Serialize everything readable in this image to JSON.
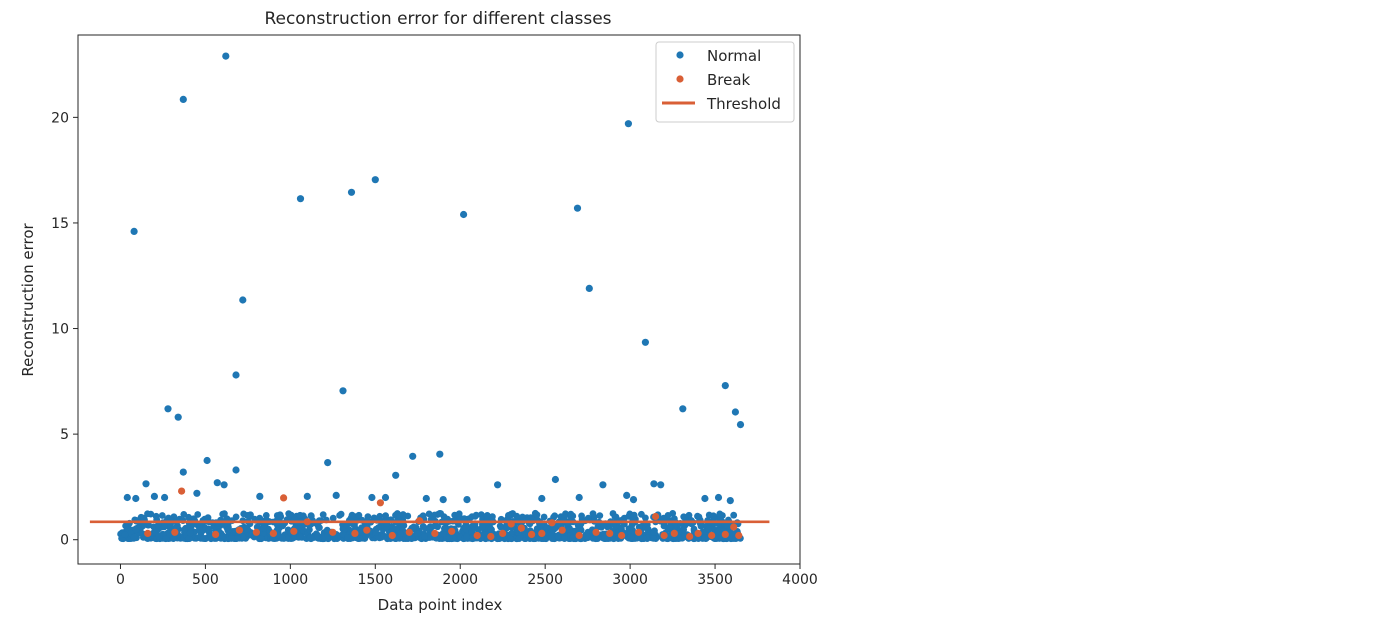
{
  "chart_data": {
    "type": "scatter",
    "title": "Reconstruction error for different classes",
    "xlabel": "Data point index",
    "ylabel": "Reconstruction error",
    "xlim": [
      -250,
      4000
    ],
    "ylim": [
      -1.15,
      23.9
    ],
    "xticks": [
      0,
      500,
      1000,
      1500,
      2000,
      2500,
      3000,
      3500,
      4000
    ],
    "yticks": [
      0,
      5,
      10,
      15,
      20
    ],
    "grid": false,
    "legend_position": "top-right",
    "colors": {
      "normal": "#1f77b4",
      "break": "#d95f36",
      "threshold": "#d95f36",
      "axes": "#262626"
    },
    "series": [
      {
        "name": "Normal",
        "kind": "points",
        "outliers": [
          [
            620,
            22.9
          ],
          [
            370,
            20.85
          ],
          [
            2990,
            19.7
          ],
          [
            1500,
            17.05
          ],
          [
            1360,
            16.45
          ],
          [
            1060,
            16.15
          ],
          [
            2020,
            15.4
          ],
          [
            2690,
            15.7
          ],
          [
            80,
            14.6
          ],
          [
            2760,
            11.9
          ],
          [
            720,
            11.35
          ],
          [
            3090,
            9.35
          ],
          [
            680,
            7.8
          ],
          [
            3560,
            7.3
          ],
          [
            1310,
            7.05
          ],
          [
            280,
            6.2
          ],
          [
            340,
            5.8
          ],
          [
            3310,
            6.2
          ],
          [
            3620,
            6.05
          ],
          [
            3650,
            5.45
          ],
          [
            1880,
            4.05
          ],
          [
            1720,
            3.95
          ],
          [
            510,
            3.75
          ],
          [
            1220,
            3.65
          ],
          [
            680,
            3.3
          ],
          [
            370,
            3.2
          ],
          [
            1620,
            3.05
          ],
          [
            2560,
            2.85
          ],
          [
            150,
            2.65
          ],
          [
            2220,
            2.6
          ],
          [
            2840,
            2.6
          ],
          [
            3140,
            2.65
          ],
          [
            3180,
            2.6
          ],
          [
            570,
            2.7
          ],
          [
            610,
            2.6
          ],
          [
            40,
            2.0
          ],
          [
            90,
            1.95
          ],
          [
            200,
            2.05
          ],
          [
            260,
            2.0
          ],
          [
            450,
            2.2
          ],
          [
            820,
            2.05
          ],
          [
            1100,
            2.05
          ],
          [
            1270,
            2.1
          ],
          [
            1480,
            2.0
          ],
          [
            1560,
            2.0
          ],
          [
            1800,
            1.95
          ],
          [
            1900,
            1.9
          ],
          [
            2040,
            1.9
          ],
          [
            2480,
            1.95
          ],
          [
            2700,
            2.0
          ],
          [
            2980,
            2.1
          ],
          [
            3020,
            1.9
          ],
          [
            3440,
            1.95
          ],
          [
            3520,
            2.0
          ],
          [
            3590,
            1.85
          ]
        ],
        "dense_band": {
          "x_range": [
            0,
            3650
          ],
          "y_range": [
            0.05,
            1.25
          ],
          "count": 1400
        }
      },
      {
        "name": "Break",
        "kind": "points",
        "points": [
          [
            360,
            2.3
          ],
          [
            960,
            1.98
          ],
          [
            160,
            0.3
          ],
          [
            320,
            0.35
          ],
          [
            560,
            0.25
          ],
          [
            700,
            0.45
          ],
          [
            800,
            0.35
          ],
          [
            900,
            0.3
          ],
          [
            1020,
            0.4
          ],
          [
            1100,
            0.85
          ],
          [
            1250,
            0.35
          ],
          [
            1380,
            0.3
          ],
          [
            1450,
            0.45
          ],
          [
            1530,
            1.75
          ],
          [
            1600,
            0.2
          ],
          [
            1700,
            0.35
          ],
          [
            1760,
            0.9
          ],
          [
            1850,
            0.3
          ],
          [
            1950,
            0.4
          ],
          [
            2100,
            0.2
          ],
          [
            2180,
            0.15
          ],
          [
            2250,
            0.3
          ],
          [
            2300,
            0.75
          ],
          [
            2360,
            0.55
          ],
          [
            2420,
            0.25
          ],
          [
            2480,
            0.3
          ],
          [
            2540,
            0.8
          ],
          [
            2600,
            0.45
          ],
          [
            2700,
            0.2
          ],
          [
            2800,
            0.35
          ],
          [
            2880,
            0.3
          ],
          [
            2950,
            0.2
          ],
          [
            3050,
            0.35
          ],
          [
            3150,
            1.1
          ],
          [
            3200,
            0.2
          ],
          [
            3260,
            0.3
          ],
          [
            3350,
            0.15
          ],
          [
            3400,
            0.3
          ],
          [
            3480,
            0.2
          ],
          [
            3560,
            0.25
          ],
          [
            3610,
            0.6
          ],
          [
            3640,
            0.2
          ]
        ]
      },
      {
        "name": "Threshold",
        "kind": "line",
        "x": [
          -180,
          3820
        ],
        "y": [
          0.85,
          0.85
        ]
      }
    ]
  }
}
